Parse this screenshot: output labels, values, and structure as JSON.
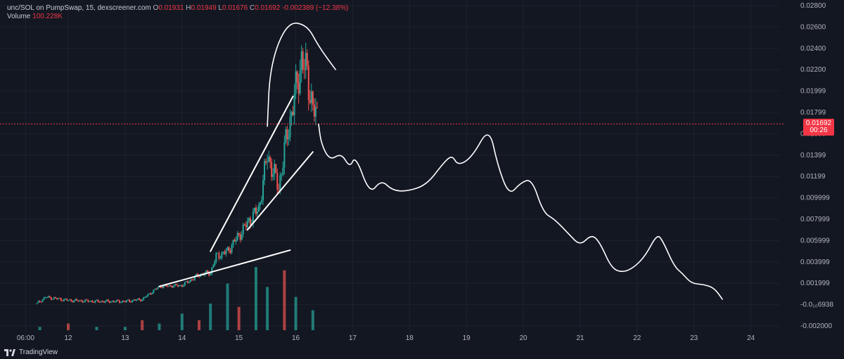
{
  "legend": {
    "symbol": "unc/SOL on PumpSwap, 15, dexscreener.com",
    "o_label": "O",
    "o_value": "0.01931",
    "h_label": "H",
    "h_value": "0.01949",
    "l_label": "L",
    "l_value": "0.01676",
    "c_label": "C",
    "c_value": "0.01692",
    "change": "-0.002389 (−12.38%)",
    "volume_label": "Volume",
    "volume_value": "100.228K"
  },
  "current_price": {
    "value": "0.01692",
    "countdown": "00:26",
    "price": 0.01692,
    "color": "#f23645"
  },
  "brand": {
    "name": "TradingView",
    "icon": "tradingview-logo-icon"
  },
  "colors": {
    "background": "#131722",
    "grid": "#1e222d",
    "up": "#26a69a",
    "down": "#ef5350",
    "annotation": "#ffffff"
  },
  "chart_data": {
    "type": "candlestick",
    "title": "unc/SOL on PumpSwap, 15, dexscreener.com",
    "y_tick_labels": [
      "0.02800",
      "0.02600",
      "0.02400",
      "0.02200",
      "0.01999",
      "0.01799",
      "0.01599",
      "0.01399",
      "0.01199",
      "0.009999",
      "0.007999",
      "0.005999",
      "0.003999",
      "0.001999",
      "-0.0₁₀6938",
      "-0.002000"
    ],
    "y_ticks": [
      0.028,
      0.026,
      0.024,
      0.022,
      0.02,
      0.018,
      0.016,
      0.014,
      0.012,
      0.01,
      0.008,
      0.006,
      0.004,
      0.002,
      0.0,
      -0.002
    ],
    "ylim": [
      -0.002,
      0.028
    ],
    "x_tick_labels": [
      "06:00",
      "12",
      "13",
      "14",
      "15",
      "16",
      "17",
      "18",
      "19",
      "20",
      "21",
      "22",
      "23",
      "24"
    ],
    "x_ticks": [
      11.25,
      12,
      13,
      14,
      15,
      16,
      17,
      18,
      19,
      20,
      21,
      22,
      23,
      24
    ],
    "xlim": [
      10.8,
      24.5
    ],
    "price_path": [
      [
        11.45,
        0.0001
      ],
      [
        11.6,
        0.0007
      ],
      [
        12.0,
        0.0004
      ],
      [
        12.5,
        0.0003
      ],
      [
        13.0,
        0.0003
      ],
      [
        13.3,
        0.0005
      ],
      [
        13.6,
        0.0017
      ],
      [
        14.0,
        0.0018
      ],
      [
        14.3,
        0.0028
      ],
      [
        14.5,
        0.003
      ],
      [
        14.6,
        0.0045
      ],
      [
        14.8,
        0.005
      ],
      [
        15.0,
        0.0065
      ],
      [
        15.2,
        0.008
      ],
      [
        15.35,
        0.009
      ],
      [
        15.5,
        0.014
      ],
      [
        15.7,
        0.011
      ],
      [
        15.85,
        0.016
      ],
      [
        16.0,
        0.02
      ],
      [
        16.1,
        0.023
      ],
      [
        16.2,
        0.0215
      ],
      [
        16.3,
        0.0185
      ],
      [
        16.4,
        0.0169
      ]
    ],
    "volume_values": [
      1,
      2,
      1,
      1,
      3,
      2,
      5,
      3,
      8,
      14,
      7,
      19,
      13,
      18,
      10,
      6
    ],
    "volume_x": [
      11.5,
      12.0,
      12.5,
      13.0,
      13.3,
      13.6,
      14.0,
      14.3,
      14.5,
      14.8,
      15.0,
      15.3,
      15.5,
      15.8,
      16.0,
      16.3
    ],
    "annotations": [
      {
        "type": "line",
        "points": [
          [
            13.6,
            0.0017
          ],
          [
            15.9,
            0.0051
          ]
        ]
      },
      {
        "type": "line",
        "points": [
          [
            14.5,
            0.005
          ],
          [
            15.95,
            0.0195
          ]
        ]
      },
      {
        "type": "line",
        "points": [
          [
            15.15,
            0.007
          ],
          [
            16.3,
            0.0143
          ]
        ]
      },
      {
        "type": "arc",
        "points": [
          [
            15.5,
            0.0167
          ],
          [
            15.55,
            0.0225
          ],
          [
            15.85,
            0.0265
          ],
          [
            16.2,
            0.0262
          ],
          [
            16.4,
            0.0242
          ],
          [
            16.7,
            0.022
          ]
        ]
      },
      {
        "type": "projection",
        "points": [
          [
            16.4,
            0.0169
          ],
          [
            16.45,
            0.015
          ],
          [
            16.6,
            0.0135
          ],
          [
            16.8,
            0.0142
          ],
          [
            16.95,
            0.0128
          ],
          [
            17.05,
            0.014
          ],
          [
            17.3,
            0.0103
          ],
          [
            17.5,
            0.0117
          ],
          [
            17.7,
            0.0107
          ],
          [
            17.95,
            0.0106
          ],
          [
            18.3,
            0.0112
          ],
          [
            18.6,
            0.0133
          ],
          [
            18.75,
            0.014
          ],
          [
            18.85,
            0.013
          ],
          [
            19.1,
            0.0138
          ],
          [
            19.4,
            0.0167
          ],
          [
            19.55,
            0.013
          ],
          [
            19.75,
            0.0102
          ],
          [
            19.95,
            0.0114
          ],
          [
            20.15,
            0.0118
          ],
          [
            20.35,
            0.0086
          ],
          [
            20.55,
            0.008
          ],
          [
            20.8,
            0.0066
          ],
          [
            21.0,
            0.0055
          ],
          [
            21.2,
            0.0066
          ],
          [
            21.35,
            0.0058
          ],
          [
            21.55,
            0.0034
          ],
          [
            21.75,
            0.003
          ],
          [
            21.95,
            0.0035
          ],
          [
            22.15,
            0.0046
          ],
          [
            22.35,
            0.0066
          ],
          [
            22.45,
            0.006
          ],
          [
            22.65,
            0.0036
          ],
          [
            22.8,
            0.0029
          ],
          [
            22.95,
            0.002
          ],
          [
            23.15,
            0.0019
          ],
          [
            23.35,
            0.0016
          ],
          [
            23.5,
            0.0005
          ]
        ]
      }
    ]
  }
}
